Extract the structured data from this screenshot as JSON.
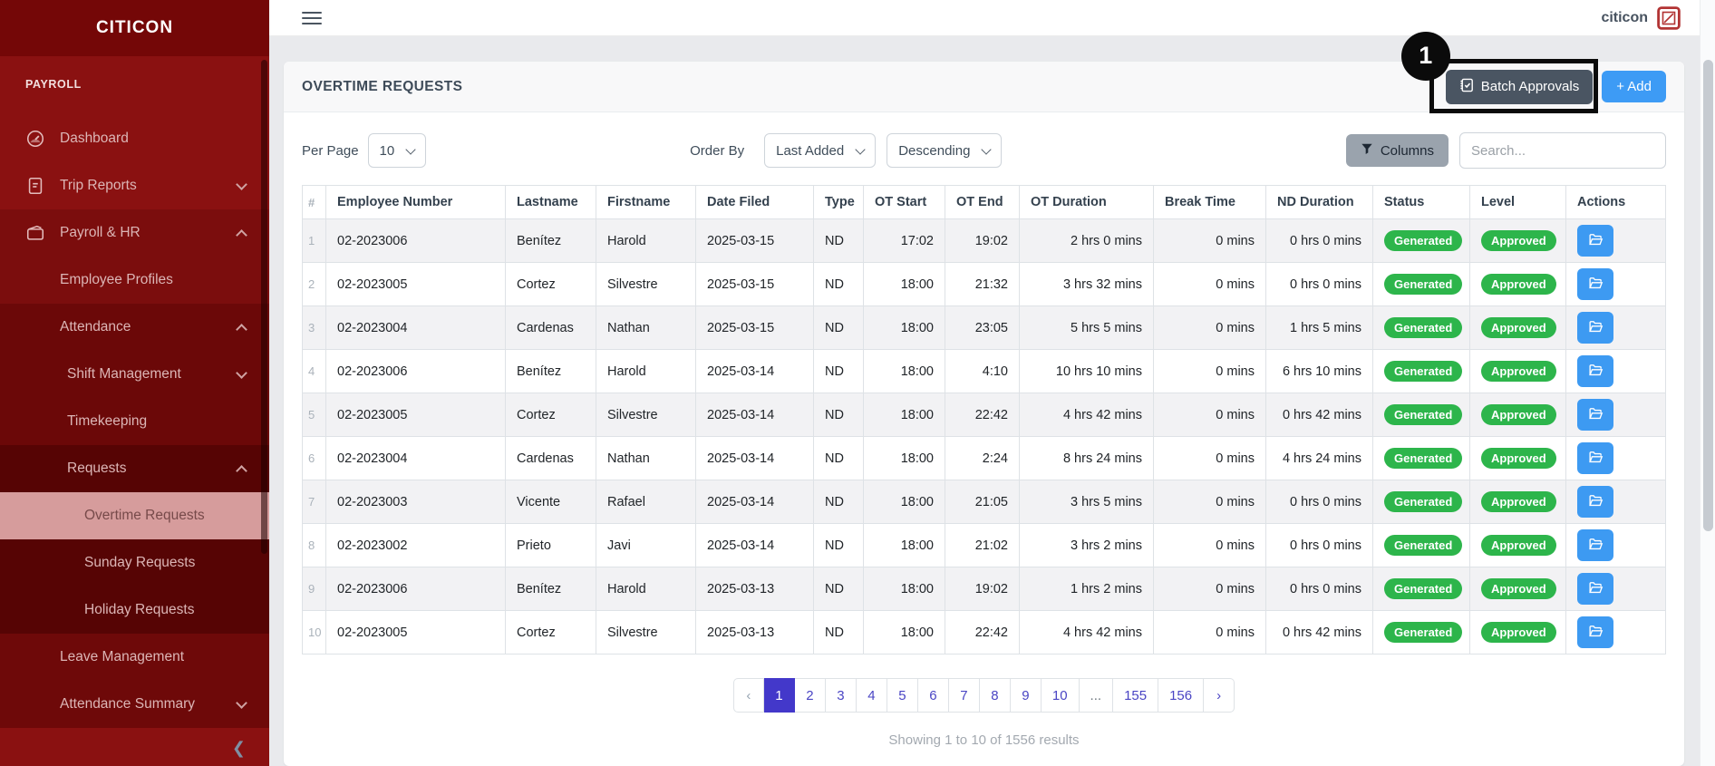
{
  "sidebar": {
    "logo": "CITICON",
    "section_label": "PAYROLL",
    "items": [
      {
        "label": "Dashboard",
        "icon": "gauge",
        "indent": 0,
        "shade": "base",
        "chevron": ""
      },
      {
        "label": "Trip Reports",
        "icon": "document",
        "indent": 0,
        "shade": "base",
        "chevron": "down"
      },
      {
        "label": "Payroll & HR",
        "icon": "wallet",
        "indent": 0,
        "shade": "g1",
        "chevron": "up"
      },
      {
        "label": "Employee Profiles",
        "icon": "",
        "indent": 1,
        "shade": "g1",
        "chevron": ""
      },
      {
        "label": "Attendance",
        "icon": "",
        "indent": 1,
        "shade": "g2",
        "chevron": "up"
      },
      {
        "label": "Shift Management",
        "icon": "",
        "indent": 2,
        "shade": "g2",
        "chevron": "down"
      },
      {
        "label": "Timekeeping",
        "icon": "",
        "indent": 2,
        "shade": "g2",
        "chevron": ""
      },
      {
        "label": "Requests",
        "icon": "",
        "indent": 2,
        "shade": "g3",
        "chevron": "up"
      },
      {
        "label": "Overtime Requests",
        "icon": "",
        "indent": 3,
        "shade": "g3",
        "chevron": "",
        "active": true
      },
      {
        "label": "Sunday Requests",
        "icon": "",
        "indent": 3,
        "shade": "g3",
        "chevron": ""
      },
      {
        "label": "Holiday Requests",
        "icon": "",
        "indent": 3,
        "shade": "g3",
        "chevron": ""
      },
      {
        "label": "Leave Management",
        "icon": "",
        "indent": 1,
        "shade": "g2b",
        "chevron": ""
      },
      {
        "label": "Attendance Summary",
        "icon": "",
        "indent": 1,
        "shade": "g2b",
        "chevron": "down"
      }
    ],
    "collapse_glyph": "❮"
  },
  "topbar": {
    "brand": "citicon"
  },
  "page": {
    "title": "OVERTIME REQUESTS",
    "batch_approvals_label": "Batch Approvals",
    "add_label": "+ Add",
    "annotation_number": "1"
  },
  "toolbar": {
    "per_page_label": "Per Page",
    "per_page_value": "10",
    "order_by_label": "Order By",
    "order_value": "Last Added",
    "direction_value": "Descending",
    "columns_label": "Columns",
    "search_placeholder": "Search..."
  },
  "table": {
    "headers": [
      "#",
      "Employee Number",
      "Lastname",
      "Firstname",
      "Date Filed",
      "Type",
      "OT Start",
      "OT End",
      "OT Duration",
      "Break Time",
      "ND Duration",
      "Status",
      "Level",
      "Actions"
    ],
    "rows": [
      {
        "num": "1",
        "employee_number": "02-2023006",
        "lastname": "Benítez",
        "firstname": "Harold",
        "date_filed": "2025-03-15",
        "type": "ND",
        "ot_start": "17:02",
        "ot_end": "19:02",
        "ot_duration": "2 hrs 0 mins",
        "break_time": "0 mins",
        "nd_duration": "0 hrs 0 mins",
        "status": "Generated",
        "level": "Approved"
      },
      {
        "num": "2",
        "employee_number": "02-2023005",
        "lastname": "Cortez",
        "firstname": "Silvestre",
        "date_filed": "2025-03-15",
        "type": "ND",
        "ot_start": "18:00",
        "ot_end": "21:32",
        "ot_duration": "3 hrs 32 mins",
        "break_time": "0 mins",
        "nd_duration": "0 hrs 0 mins",
        "status": "Generated",
        "level": "Approved"
      },
      {
        "num": "3",
        "employee_number": "02-2023004",
        "lastname": "Cardenas",
        "firstname": "Nathan",
        "date_filed": "2025-03-15",
        "type": "ND",
        "ot_start": "18:00",
        "ot_end": "23:05",
        "ot_duration": "5 hrs 5 mins",
        "break_time": "0 mins",
        "nd_duration": "1 hrs 5 mins",
        "status": "Generated",
        "level": "Approved"
      },
      {
        "num": "4",
        "employee_number": "02-2023006",
        "lastname": "Benítez",
        "firstname": "Harold",
        "date_filed": "2025-03-14",
        "type": "ND",
        "ot_start": "18:00",
        "ot_end": "4:10",
        "ot_duration": "10 hrs 10 mins",
        "break_time": "0 mins",
        "nd_duration": "6 hrs 10 mins",
        "status": "Generated",
        "level": "Approved"
      },
      {
        "num": "5",
        "employee_number": "02-2023005",
        "lastname": "Cortez",
        "firstname": "Silvestre",
        "date_filed": "2025-03-14",
        "type": "ND",
        "ot_start": "18:00",
        "ot_end": "22:42",
        "ot_duration": "4 hrs 42 mins",
        "break_time": "0 mins",
        "nd_duration": "0 hrs 42 mins",
        "status": "Generated",
        "level": "Approved"
      },
      {
        "num": "6",
        "employee_number": "02-2023004",
        "lastname": "Cardenas",
        "firstname": "Nathan",
        "date_filed": "2025-03-14",
        "type": "ND",
        "ot_start": "18:00",
        "ot_end": "2:24",
        "ot_duration": "8 hrs 24 mins",
        "break_time": "0 mins",
        "nd_duration": "4 hrs 24 mins",
        "status": "Generated",
        "level": "Approved"
      },
      {
        "num": "7",
        "employee_number": "02-2023003",
        "lastname": "Vicente",
        "firstname": "Rafael",
        "date_filed": "2025-03-14",
        "type": "ND",
        "ot_start": "18:00",
        "ot_end": "21:05",
        "ot_duration": "3 hrs 5 mins",
        "break_time": "0 mins",
        "nd_duration": "0 hrs 0 mins",
        "status": "Generated",
        "level": "Approved"
      },
      {
        "num": "8",
        "employee_number": "02-2023002",
        "lastname": "Prieto",
        "firstname": "Javi",
        "date_filed": "2025-03-14",
        "type": "ND",
        "ot_start": "18:00",
        "ot_end": "21:02",
        "ot_duration": "3 hrs 2 mins",
        "break_time": "0 mins",
        "nd_duration": "0 hrs 0 mins",
        "status": "Generated",
        "level": "Approved"
      },
      {
        "num": "9",
        "employee_number": "02-2023006",
        "lastname": "Benítez",
        "firstname": "Harold",
        "date_filed": "2025-03-13",
        "type": "ND",
        "ot_start": "18:00",
        "ot_end": "19:02",
        "ot_duration": "1 hrs 2 mins",
        "break_time": "0 mins",
        "nd_duration": "0 hrs 0 mins",
        "status": "Generated",
        "level": "Approved"
      },
      {
        "num": "10",
        "employee_number": "02-2023005",
        "lastname": "Cortez",
        "firstname": "Silvestre",
        "date_filed": "2025-03-13",
        "type": "ND",
        "ot_start": "18:00",
        "ot_end": "22:42",
        "ot_duration": "4 hrs 42 mins",
        "break_time": "0 mins",
        "nd_duration": "0 hrs 42 mins",
        "status": "Generated",
        "level": "Approved"
      }
    ]
  },
  "pagination": {
    "prev": "‹",
    "next": "›",
    "pages": [
      "1",
      "2",
      "3",
      "4",
      "5",
      "6",
      "7",
      "8",
      "9",
      "10",
      "...",
      "155",
      "156"
    ],
    "active": "1",
    "summary": "Showing 1 to 10 of 1556 results"
  }
}
